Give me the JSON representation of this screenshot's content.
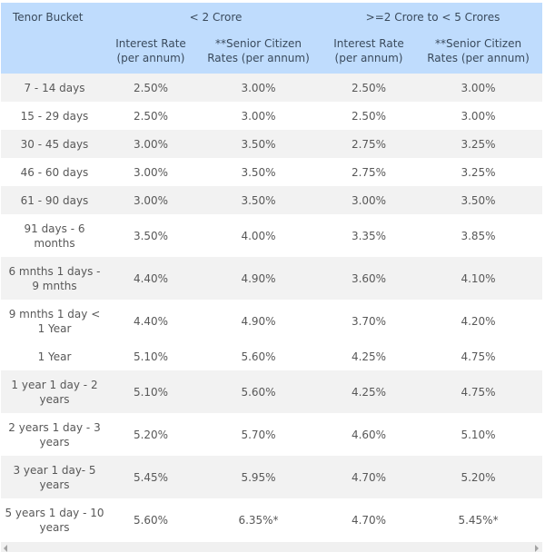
{
  "table": {
    "header": {
      "tenor_label": "Tenor Bucket",
      "group1_label": "< 2 Crore",
      "group2_label": ">=2 Crore to < 5 Crores",
      "sub": {
        "interest_line1": "Interest Rate",
        "interest_line2": "(per annum)",
        "senior_line1": "**Senior Citizen",
        "senior_line2": "Rates (per annum)"
      }
    },
    "rows": [
      {
        "tenor": "7 - 14 days",
        "g1_rate": "2.50%",
        "g1_senior": "3.00%",
        "g2_rate": "2.50%",
        "g2_senior": "3.00%"
      },
      {
        "tenor": "15 - 29 days",
        "g1_rate": "2.50%",
        "g1_senior": "3.00%",
        "g2_rate": "2.50%",
        "g2_senior": "3.00%"
      },
      {
        "tenor": "30 - 45 days",
        "g1_rate": "3.00%",
        "g1_senior": "3.50%",
        "g2_rate": "2.75%",
        "g2_senior": "3.25%"
      },
      {
        "tenor": "46 - 60 days",
        "g1_rate": "3.00%",
        "g1_senior": "3.50%",
        "g2_rate": "2.75%",
        "g2_senior": "3.25%"
      },
      {
        "tenor": "61 - 90 days",
        "g1_rate": "3.00%",
        "g1_senior": "3.50%",
        "g2_rate": "3.00%",
        "g2_senior": "3.50%"
      },
      {
        "tenor": "91 days - 6 months",
        "g1_rate": "3.50%",
        "g1_senior": "4.00%",
        "g2_rate": "3.35%",
        "g2_senior": "3.85%"
      },
      {
        "tenor": "6 mnths 1 days - 9 mnths",
        "g1_rate": "4.40%",
        "g1_senior": "4.90%",
        "g2_rate": "3.60%",
        "g2_senior": "4.10%"
      },
      {
        "tenor": "9 mnths 1 day < 1 Year",
        "g1_rate": "4.40%",
        "g1_senior": "4.90%",
        "g2_rate": "3.70%",
        "g2_senior": "4.20%"
      },
      {
        "tenor": "1 Year",
        "g1_rate": "5.10%",
        "g1_senior": "5.60%",
        "g2_rate": "4.25%",
        "g2_senior": "4.75%"
      },
      {
        "tenor": "1 year 1 day - 2 years",
        "g1_rate": "5.10%",
        "g1_senior": "5.60%",
        "g2_rate": "4.25%",
        "g2_senior": "4.75%"
      },
      {
        "tenor": "2 years 1 day - 3 years",
        "g1_rate": "5.20%",
        "g1_senior": "5.70%",
        "g2_rate": "4.60%",
        "g2_senior": "5.10%"
      },
      {
        "tenor": "3 year 1 day- 5 years",
        "g1_rate": "5.45%",
        "g1_senior": "5.95%",
        "g2_rate": "4.70%",
        "g2_senior": "5.20%"
      },
      {
        "tenor": "5 years 1 day - 10 years",
        "g1_rate": "5.60%",
        "g1_senior": "6.35%*",
        "g2_rate": "4.70%",
        "g2_senior": "5.45%*"
      }
    ]
  },
  "colors": {
    "header_bg": "#bfdcfd",
    "stripe_bg": "#f2f2f2",
    "text": "#585858"
  }
}
